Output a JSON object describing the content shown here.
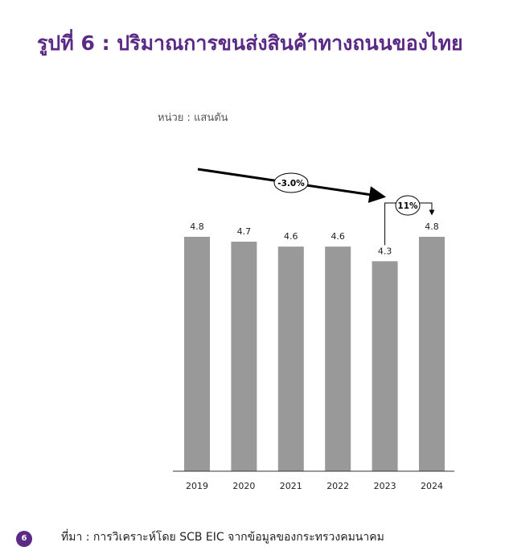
{
  "page": {
    "title": "รูปที่ 6 : ปริมาณการขนส่งสินค้าทางถนนของไทย",
    "unit": "หน่วย : แสนตัน",
    "source": "ที่มา : การวิเคราะห์โดย SCB EIC จากข้อมูลของกระทรวงคมนาคม",
    "page_number": "6"
  },
  "colors": {
    "title": "#5b2a86",
    "bar": "#999999",
    "badge": "#5b2a86"
  },
  "chart_data": {
    "type": "bar",
    "categories": [
      "2019",
      "2020",
      "2021",
      "2022",
      "2023",
      "2024"
    ],
    "values": [
      4.8,
      4.7,
      4.6,
      4.6,
      4.3,
      4.8
    ],
    "data_labels": [
      "4.8",
      "4.7",
      "4.6",
      "4.6",
      "4.3",
      "4.8"
    ],
    "ylim": [
      0,
      4.8
    ],
    "grid": false,
    "annotations": [
      {
        "text": "-3.0%",
        "from": "2019",
        "to": "2023"
      },
      {
        "text": "11%",
        "from": "2023",
        "to": "2024"
      }
    ]
  }
}
